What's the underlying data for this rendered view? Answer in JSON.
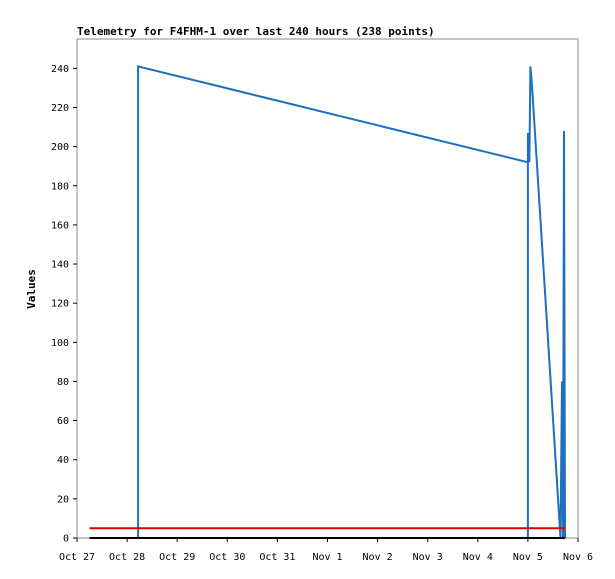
{
  "chart_data": {
    "type": "line",
    "title": "Telemetry for F4FHM-1 over last 240 hours (238 points)",
    "xlabel": "",
    "ylabel": "Values",
    "x_tick_labels": [
      "Oct 27",
      "Oct 28",
      "Oct 29",
      "Oct 30",
      "Oct 31",
      "Nov 1",
      "Nov 2",
      "Nov 3",
      "Nov 4",
      "Nov 5",
      "Nov 6"
    ],
    "y_ticks": [
      0,
      20,
      40,
      60,
      80,
      100,
      120,
      140,
      160,
      180,
      200,
      220,
      240
    ],
    "xlim_days": [
      0,
      10
    ],
    "ylim": [
      0,
      255
    ],
    "grid": false,
    "series": [
      {
        "color": "#1f6fbf",
        "points": [
          [
            1.22,
            0
          ],
          [
            1.22,
            241
          ],
          [
            9.0,
            192
          ],
          [
            9.0,
            0
          ],
          [
            9.0,
            176
          ],
          [
            9.0,
            207
          ],
          [
            9.03,
            192
          ],
          [
            9.05,
            241
          ],
          [
            9.08,
            232
          ],
          [
            9.65,
            0
          ],
          [
            9.68,
            80
          ],
          [
            9.7,
            0
          ],
          [
            9.72,
            208
          ],
          [
            9.74,
            0
          ]
        ]
      },
      {
        "color": "#e00000",
        "points": [
          [
            0.25,
            5
          ],
          [
            9.74,
            5
          ]
        ]
      },
      {
        "color": "#000000",
        "points": [
          [
            0.25,
            0
          ],
          [
            9.74,
            0
          ]
        ]
      }
    ]
  }
}
